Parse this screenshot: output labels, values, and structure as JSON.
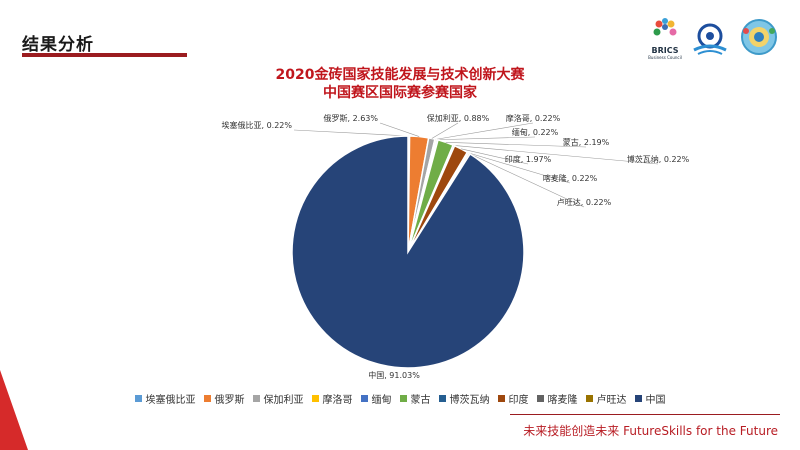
{
  "header": {
    "title": "结果分析"
  },
  "logos": {
    "brics_text": "BRICS",
    "brics_sub": "Business Council"
  },
  "chart_data": {
    "type": "pie",
    "title": "2020金砖国家技能发展与技术创新大赛",
    "subtitle": "中国赛区国际赛参赛国家",
    "slices": [
      {
        "name": "埃塞俄比亚",
        "value": 0.22,
        "label": "埃塞俄比亚, 0.22%",
        "color": "#5b9bd5"
      },
      {
        "name": "俄罗斯",
        "value": 2.63,
        "label": "俄罗斯, 2.63%",
        "color": "#ed7d31"
      },
      {
        "name": "保加利亚",
        "value": 0.88,
        "label": "保加利亚, 0.88%",
        "color": "#a5a5a5"
      },
      {
        "name": "摩洛哥",
        "value": 0.22,
        "label": "摩洛哥, 0.22%",
        "color": "#ffc000"
      },
      {
        "name": "缅甸",
        "value": 0.22,
        "label": "缅甸, 0.22%",
        "color": "#4472c4"
      },
      {
        "name": "蒙古",
        "value": 2.19,
        "label": "蒙古, 2.19%",
        "color": "#70ad47"
      },
      {
        "name": "博茨瓦纳",
        "value": 0.22,
        "label": "博茨瓦纳, 0.22%",
        "color": "#255e91"
      },
      {
        "name": "印度",
        "value": 1.97,
        "label": "印度, 1.97%",
        "color": "#9e480e"
      },
      {
        "name": "喀麦隆",
        "value": 0.22,
        "label": "喀麦隆, 0.22%",
        "color": "#636363"
      },
      {
        "name": "卢旺达",
        "value": 0.22,
        "label": "卢旺达, 0.22%",
        "color": "#997300"
      },
      {
        "name": "中国",
        "value": 91.03,
        "label": "中国, 91.03%",
        "color": "#264478"
      }
    ],
    "legend_position": "bottom"
  },
  "footer": {
    "slogan": "未来技能创造未来 FutureSkills for the Future"
  }
}
